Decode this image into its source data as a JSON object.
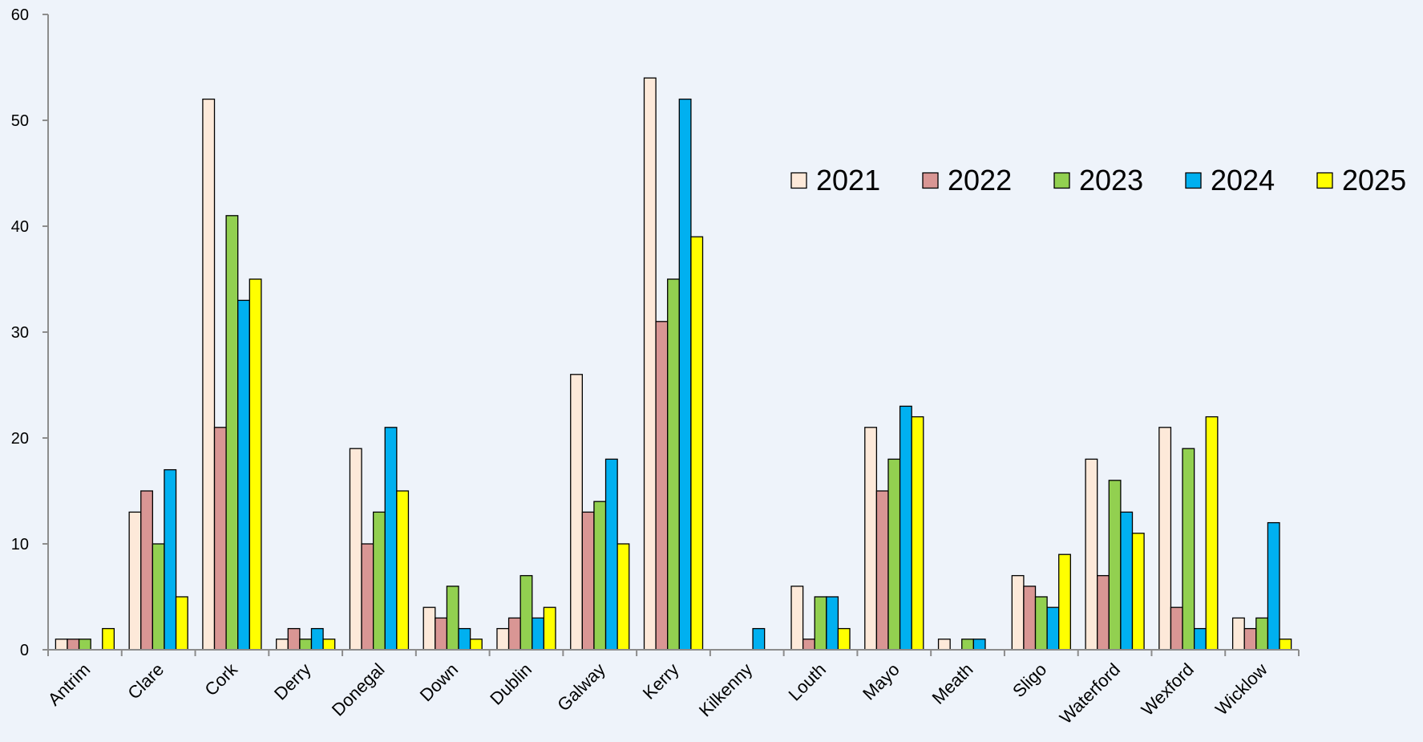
{
  "chart_data": {
    "type": "bar",
    "title": "",
    "xlabel": "",
    "ylabel": "",
    "ylim": [
      0,
      60
    ],
    "yticks": [
      0,
      10,
      20,
      30,
      40,
      50,
      60
    ],
    "grid": false,
    "legend_position": "top-right",
    "categories": [
      "Antrim",
      "Clare",
      "Cork",
      "Derry",
      "Donegal",
      "Down",
      "Dublin",
      "Galway",
      "Kerry",
      "Kilkenny",
      "Louth",
      "Mayo",
      "Meath",
      "Sligo",
      "Waterford",
      "Wexford",
      "Wicklow"
    ],
    "series": [
      {
        "name": "2021",
        "color": "#fde9d9",
        "values": [
          1,
          13,
          52,
          1,
          19,
          4,
          2,
          26,
          54,
          0,
          6,
          21,
          1,
          7,
          18,
          21,
          3
        ]
      },
      {
        "name": "2022",
        "color": "#d99694",
        "values": [
          1,
          15,
          21,
          2,
          10,
          3,
          3,
          13,
          31,
          0,
          1,
          15,
          0,
          6,
          7,
          4,
          2
        ]
      },
      {
        "name": "2023",
        "color": "#92d050",
        "values": [
          1,
          10,
          41,
          1,
          13,
          6,
          7,
          14,
          35,
          0,
          5,
          18,
          1,
          5,
          16,
          19,
          3
        ]
      },
      {
        "name": "2024",
        "color": "#00b0f0",
        "values": [
          0,
          17,
          33,
          2,
          21,
          2,
          3,
          18,
          52,
          2,
          5,
          23,
          1,
          4,
          13,
          2,
          12
        ]
      },
      {
        "name": "2025",
        "color": "#ffff00",
        "values": [
          2,
          5,
          35,
          1,
          15,
          1,
          4,
          10,
          39,
          0,
          2,
          22,
          0,
          9,
          11,
          22,
          1
        ]
      }
    ]
  }
}
